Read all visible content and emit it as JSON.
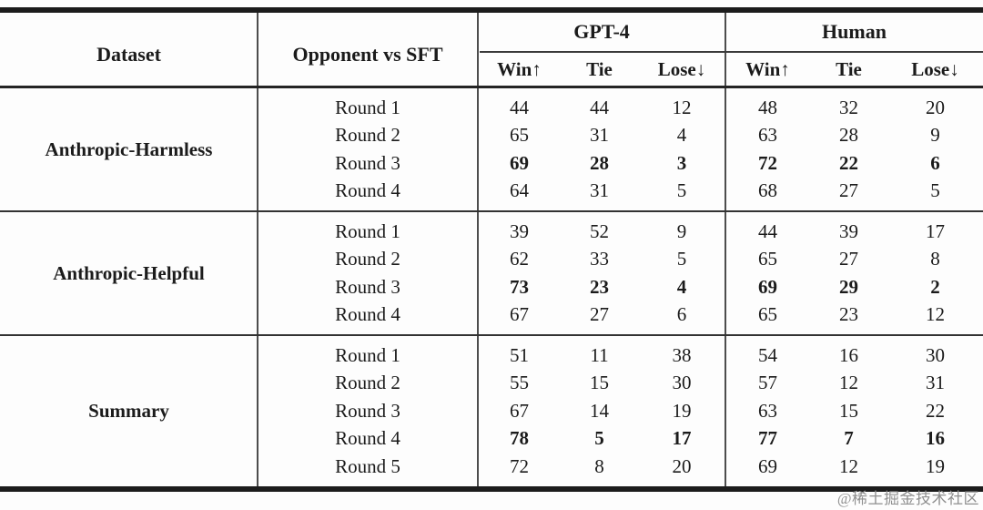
{
  "table": {
    "headers": {
      "dataset": "Dataset",
      "opponent": "Opponent vs SFT",
      "groups": [
        {
          "label": "GPT-4",
          "cols": [
            "Win↑",
            "Tie",
            "Lose↓"
          ]
        },
        {
          "label": "Human",
          "cols": [
            "Win↑",
            "Tie",
            "Lose↓"
          ]
        }
      ]
    },
    "sections": [
      {
        "dataset": "Anthropic-Harmless",
        "rows": [
          {
            "round": "Round 1",
            "bold": false,
            "gpt4": [
              44,
              44,
              12
            ],
            "human": [
              48,
              32,
              20
            ]
          },
          {
            "round": "Round 2",
            "bold": false,
            "gpt4": [
              65,
              31,
              4
            ],
            "human": [
              63,
              28,
              9
            ]
          },
          {
            "round": "Round 3",
            "bold": true,
            "gpt4": [
              69,
              28,
              3
            ],
            "human": [
              72,
              22,
              6
            ]
          },
          {
            "round": "Round 4",
            "bold": false,
            "gpt4": [
              64,
              31,
              5
            ],
            "human": [
              68,
              27,
              5
            ]
          }
        ]
      },
      {
        "dataset": "Anthropic-Helpful",
        "rows": [
          {
            "round": "Round 1",
            "bold": false,
            "gpt4": [
              39,
              52,
              9
            ],
            "human": [
              44,
              39,
              17
            ]
          },
          {
            "round": "Round 2",
            "bold": false,
            "gpt4": [
              62,
              33,
              5
            ],
            "human": [
              65,
              27,
              8
            ]
          },
          {
            "round": "Round 3",
            "bold": true,
            "gpt4": [
              73,
              23,
              4
            ],
            "human": [
              69,
              29,
              2
            ]
          },
          {
            "round": "Round 4",
            "bold": false,
            "gpt4": [
              67,
              27,
              6
            ],
            "human": [
              65,
              23,
              12
            ]
          }
        ]
      },
      {
        "dataset": "Summary",
        "rows": [
          {
            "round": "Round 1",
            "bold": false,
            "gpt4": [
              51,
              11,
              38
            ],
            "human": [
              54,
              16,
              30
            ]
          },
          {
            "round": "Round 2",
            "bold": false,
            "gpt4": [
              55,
              15,
              30
            ],
            "human": [
              57,
              12,
              31
            ]
          },
          {
            "round": "Round 3",
            "bold": false,
            "gpt4": [
              67,
              14,
              19
            ],
            "human": [
              63,
              15,
              22
            ]
          },
          {
            "round": "Round 4",
            "bold": true,
            "gpt4": [
              78,
              5,
              17
            ],
            "human": [
              77,
              7,
              16
            ]
          },
          {
            "round": "Round 5",
            "bold": false,
            "gpt4": [
              72,
              8,
              20
            ],
            "human": [
              69,
              12,
              19
            ]
          }
        ]
      }
    ]
  },
  "watermark": "@稀土掘金技术社区",
  "colors": {
    "text": "#1b1b1b",
    "rule": "#1c1c1c",
    "divider": "#4d4d4d",
    "watermark": "#8f8f8f",
    "background": "#fdfdfd"
  }
}
